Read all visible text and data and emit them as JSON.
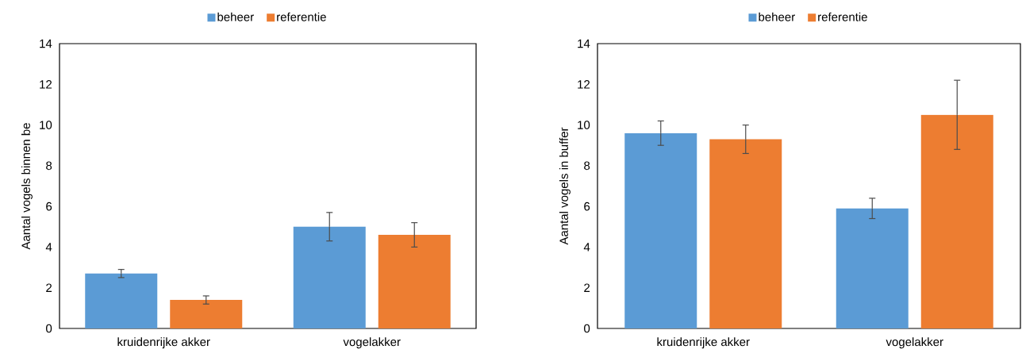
{
  "chart_data": [
    {
      "type": "bar",
      "ylabel": "Aantal vogels binnen be",
      "categories": [
        "kruidenrijke akker",
        "vogelakker"
      ],
      "series": [
        {
          "name": "beheer",
          "color": "#5b9bd5",
          "values": [
            2.7,
            5.0
          ],
          "errors": [
            0.2,
            0.7
          ]
        },
        {
          "name": "referentie",
          "color": "#ed7d31",
          "values": [
            1.4,
            4.6
          ],
          "errors": [
            0.2,
            0.6
          ]
        }
      ],
      "ylim": [
        0,
        14
      ],
      "yticks": [
        0,
        2,
        4,
        6,
        8,
        10,
        12,
        14
      ],
      "legend": "top"
    },
    {
      "type": "bar",
      "ylabel": "Aantal vogels in buffer",
      "categories": [
        "kruidenrijke akker",
        "vogelakker"
      ],
      "series": [
        {
          "name": "beheer",
          "color": "#5b9bd5",
          "values": [
            9.6,
            5.9
          ],
          "errors": [
            0.6,
            0.5
          ]
        },
        {
          "name": "referentie",
          "color": "#ed7d31",
          "values": [
            9.3,
            10.5
          ],
          "errors": [
            0.7,
            1.7
          ]
        }
      ],
      "ylim": [
        0,
        14
      ],
      "yticks": [
        0,
        2,
        4,
        6,
        8,
        10,
        12,
        14
      ],
      "legend": "top"
    }
  ]
}
